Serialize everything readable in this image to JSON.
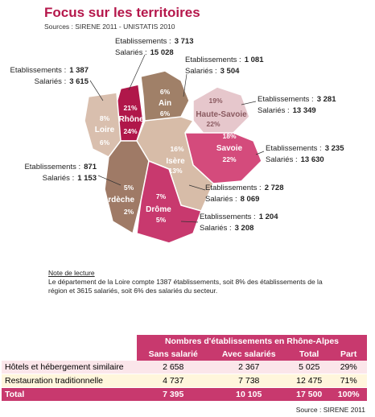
{
  "header": {
    "title": "Focus sur les territoires",
    "sources": "Sources : SIRENE 2011 - UNISTATIS 2010"
  },
  "labels": {
    "etab": "Etablissements :",
    "sal": "Salariés :"
  },
  "departments": [
    {
      "name": "Rhône",
      "pct_etab": "21%",
      "pct_sal": "24%",
      "etab": "3 713",
      "sal": "15 028"
    },
    {
      "name": "Ain",
      "pct_etab": "6%",
      "pct_sal": "6%",
      "etab": "1 081",
      "sal": "3 504"
    },
    {
      "name": "Loire",
      "pct_etab": "8%",
      "pct_sal": "6%",
      "etab": "1 387",
      "sal": "3 615"
    },
    {
      "name": "Haute-Savoie",
      "pct_etab": "19%",
      "pct_sal": "22%",
      "etab": "3 281",
      "sal": "13 349"
    },
    {
      "name": "Savoie",
      "pct_etab": "18%",
      "pct_sal": "22%",
      "etab": "3 235",
      "sal": "13 630"
    },
    {
      "name": "Isère",
      "pct_etab": "16%",
      "pct_sal": "13%",
      "etab": "2 728",
      "sal": "8 069"
    },
    {
      "name": "Ardèche",
      "pct_etab": "5%",
      "pct_sal": "2%",
      "etab": "871",
      "sal": "1 153"
    },
    {
      "name": "Drôme",
      "pct_etab": "7%",
      "pct_sal": "5%",
      "etab": "1 204",
      "sal": "3 208"
    }
  ],
  "note": {
    "title": "Note de lecture",
    "text": "Le département de la Loire compte 1387 établissements, soit 8% des établissements de la région et 3615 salariés, soit 6% des salariés du secteur."
  },
  "table": {
    "group_header": "Nombres d'établissements en Rhône-Alpes",
    "columns": [
      "Sans salarié",
      "Avec salariés",
      "Total",
      "Part"
    ],
    "rows": [
      [
        "Hôtels et hébergement similaire",
        "2 658",
        "2 367",
        "5 025",
        "29%"
      ],
      [
        "Restauration traditionnelle",
        "4 737",
        "7 738",
        "12 475",
        "71%"
      ],
      [
        "Total",
        "7 395",
        "10 105",
        "17 500",
        "100%"
      ]
    ]
  },
  "footer": {
    "source": "Source : SIRENE 2011"
  }
}
